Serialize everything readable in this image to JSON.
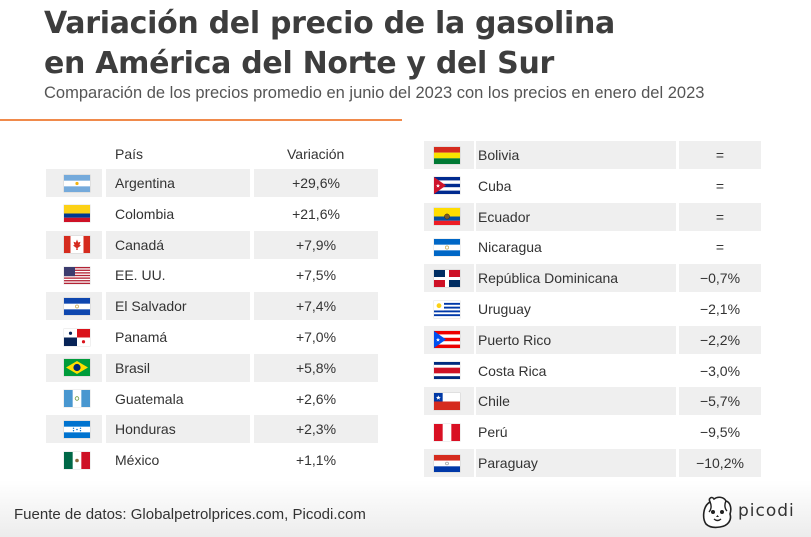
{
  "title_line1": "Variación del precio de la gasolina",
  "title_line2": "en América del Norte y del Sur",
  "subtitle": "Comparación de los precios promedio en junio del 2023 con los precios en enero del 2023",
  "headers": {
    "country": "País",
    "change": "Variación"
  },
  "source": "Fuente de datos: Globalpetrolprices.com, Picodi.com",
  "logo": "picodi",
  "colors": {
    "accent_rule": "#f08a4b",
    "row_shade": "#efefef"
  },
  "chart_data": {
    "type": "table",
    "columns": [
      "País",
      "Variación"
    ],
    "left": [
      {
        "flag": "argentina-flag",
        "country": "Argentina",
        "change": "+29,6%"
      },
      {
        "flag": "colombia-flag",
        "country": "Colombia",
        "change": "+21,6%"
      },
      {
        "flag": "canada-flag",
        "country": "Canadá",
        "change": "+7,9%"
      },
      {
        "flag": "usa-flag",
        "country": "EE. UU.",
        "change": "+7,5%"
      },
      {
        "flag": "el-salvador-flag",
        "country": "El Salvador",
        "change": "+7,4%"
      },
      {
        "flag": "panama-flag",
        "country": "Panamá",
        "change": "+7,0%"
      },
      {
        "flag": "brazil-flag",
        "country": "Brasil",
        "change": "+5,8%"
      },
      {
        "flag": "guatemala-flag",
        "country": "Guatemala",
        "change": "+2,6%"
      },
      {
        "flag": "honduras-flag",
        "country": "Honduras",
        "change": "+2,3%"
      },
      {
        "flag": "mexico-flag",
        "country": "México",
        "change": "+1,1%"
      }
    ],
    "right": [
      {
        "flag": "bolivia-flag",
        "country": "Bolivia",
        "change": "="
      },
      {
        "flag": "cuba-flag",
        "country": "Cuba",
        "change": "="
      },
      {
        "flag": "ecuador-flag",
        "country": "Ecuador",
        "change": "="
      },
      {
        "flag": "nicaragua-flag",
        "country": "Nicaragua",
        "change": "="
      },
      {
        "flag": "dominican-republic-flag",
        "country": "República Dominicana",
        "change": "−0,7%"
      },
      {
        "flag": "uruguay-flag",
        "country": "Uruguay",
        "change": "−2,1%"
      },
      {
        "flag": "puerto-rico-flag",
        "country": "Puerto Rico",
        "change": "−2,2%"
      },
      {
        "flag": "costa-rica-flag",
        "country": "Costa Rica",
        "change": "−3,0%"
      },
      {
        "flag": "chile-flag",
        "country": "Chile",
        "change": "−5,7%"
      },
      {
        "flag": "peru-flag",
        "country": "Perú",
        "change": "−9,5%"
      },
      {
        "flag": "paraguay-flag",
        "country": "Paraguay",
        "change": "−10,2%"
      }
    ]
  }
}
